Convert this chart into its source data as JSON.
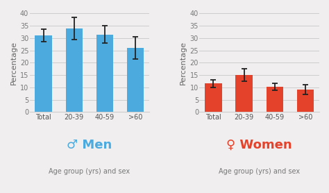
{
  "men_values": [
    31,
    34,
    31.5,
    26
  ],
  "men_errors": [
    2.5,
    4.5,
    3.5,
    4.5
  ],
  "women_values": [
    11.5,
    15,
    10.2,
    9.2
  ],
  "women_errors": [
    1.5,
    2.5,
    1.5,
    2.0
  ],
  "categories": [
    "Total",
    "20-39",
    "40-59",
    ">60"
  ],
  "men_color": "#4DAADF",
  "women_color": "#E5422B",
  "error_color": "#222222",
  "ylim": [
    0,
    40
  ],
  "yticks": [
    0,
    5,
    10,
    15,
    20,
    25,
    30,
    35,
    40
  ],
  "ylabel": "Percentage",
  "men_label": "Men",
  "women_label": "Women",
  "xlabel": "Age group (yrs) and sex",
  "background_color": "#f0eeee",
  "axes_bg": "#f0eeee",
  "grid_color": "#cccccc",
  "men_symbol": "♂",
  "women_symbol": "♀",
  "tick_fontsize": 7,
  "ylabel_fontsize": 8,
  "title_fontsize": 13,
  "xlabel_fontsize": 7,
  "bar_width": 0.55
}
